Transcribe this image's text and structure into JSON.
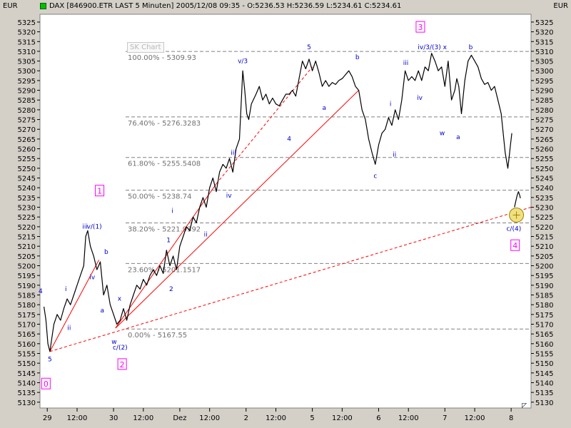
{
  "header": {
    "title": "DAX [846900.ETR LAST 5 Minuten] 2005/12/08 09:35 - O:5236.53 H:5236.59 L:5234.61 C:5234.61",
    "currency_left": "EUR",
    "currency_right": "EUR"
  },
  "watermark": "SK Chart",
  "colors": {
    "price": "#000000",
    "fib": "#808080",
    "trend": "#ff0000",
    "wave_label": "#0000cc",
    "major_label": "#ff00ff",
    "highlight": "#f0e080"
  },
  "chart_data": {
    "type": "line",
    "title": "DAX [846900.ETR LAST 5 Minuten]",
    "ylim": [
      5127,
      5329
    ],
    "y_ticks": [
      5130,
      5135,
      5140,
      5145,
      5150,
      5155,
      5160,
      5165,
      5170,
      5175,
      5180,
      5185,
      5190,
      5195,
      5200,
      5205,
      5210,
      5215,
      5220,
      5225,
      5230,
      5235,
      5240,
      5245,
      5250,
      5255,
      5260,
      5265,
      5270,
      5275,
      5280,
      5285,
      5290,
      5295,
      5300,
      5305,
      5310,
      5315,
      5320,
      5325
    ],
    "x_ticks": [
      {
        "label": "29",
        "x": 0.5
      },
      {
        "label": "12:00",
        "x": 5
      },
      {
        "label": "30",
        "x": 10.5
      },
      {
        "label": "12:00",
        "x": 15
      },
      {
        "label": "Dez",
        "x": 20.5
      },
      {
        "label": "12:00",
        "x": 25
      },
      {
        "label": "2",
        "x": 30.5
      },
      {
        "label": "12:00",
        "x": 35
      },
      {
        "label": "5",
        "x": 40.5
      },
      {
        "label": "12:00",
        "x": 45
      },
      {
        "label": "6",
        "x": 50.5
      },
      {
        "label": "12:00",
        "x": 55
      },
      {
        "label": "7",
        "x": 60.5
      },
      {
        "label": "12:00",
        "x": 65
      },
      {
        "label": "8",
        "x": 70.5
      }
    ],
    "x_range": [
      -0.6,
      73.5
    ],
    "series": [
      {
        "values": [
          [
            0,
            5179
          ],
          [
            0.3,
            5172
          ],
          [
            0.6,
            5160
          ],
          [
            0.9,
            5156
          ],
          [
            1.2,
            5163
          ],
          [
            1.5,
            5170
          ],
          [
            2,
            5175
          ],
          [
            2.5,
            5172
          ],
          [
            3,
            5178
          ],
          [
            3.5,
            5183
          ],
          [
            4,
            5180
          ],
          [
            4.5,
            5185
          ],
          [
            5,
            5190
          ],
          [
            5.5,
            5195
          ],
          [
            6,
            5200
          ],
          [
            6.3,
            5215
          ],
          [
            6.6,
            5218
          ],
          [
            7,
            5210
          ],
          [
            7.5,
            5205
          ],
          [
            8,
            5198
          ],
          [
            8.5,
            5202
          ],
          [
            9,
            5185
          ],
          [
            9.5,
            5190
          ],
          [
            10,
            5180
          ],
          [
            10.5,
            5175
          ],
          [
            11,
            5170
          ],
          [
            11.5,
            5172
          ],
          [
            12,
            5178
          ],
          [
            12.5,
            5172
          ],
          [
            13,
            5180
          ],
          [
            13.5,
            5185
          ],
          [
            14,
            5190
          ],
          [
            14.5,
            5188
          ],
          [
            15,
            5193
          ],
          [
            15.5,
            5190
          ],
          [
            16,
            5195
          ],
          [
            16.5,
            5198
          ],
          [
            17,
            5195
          ],
          [
            17.5,
            5200
          ],
          [
            18,
            5196
          ],
          [
            18.5,
            5208
          ],
          [
            19,
            5200
          ],
          [
            19.5,
            5205
          ],
          [
            20,
            5198
          ],
          [
            20.5,
            5210
          ],
          [
            21,
            5215
          ],
          [
            21.5,
            5220
          ],
          [
            22,
            5218
          ],
          [
            22.5,
            5225
          ],
          [
            23,
            5222
          ],
          [
            23.5,
            5230
          ],
          [
            24,
            5235
          ],
          [
            24.5,
            5230
          ],
          [
            25,
            5240
          ],
          [
            25.5,
            5245
          ],
          [
            26,
            5238
          ],
          [
            26.5,
            5248
          ],
          [
            27,
            5252
          ],
          [
            27.5,
            5250
          ],
          [
            28,
            5255
          ],
          [
            28.5,
            5248
          ],
          [
            29,
            5260
          ],
          [
            29.5,
            5265
          ],
          [
            30,
            5300
          ],
          [
            30.3,
            5290
          ],
          [
            30.6,
            5278
          ],
          [
            30.9,
            5275
          ],
          [
            31.3,
            5283
          ],
          [
            32,
            5288
          ],
          [
            32.5,
            5292
          ],
          [
            33,
            5285
          ],
          [
            33.5,
            5288
          ],
          [
            34,
            5283
          ],
          [
            34.5,
            5286
          ],
          [
            35,
            5283
          ],
          [
            35.5,
            5282
          ],
          [
            36,
            5285
          ],
          [
            36.5,
            5288
          ],
          [
            37,
            5288
          ],
          [
            37.5,
            5290
          ],
          [
            38,
            5287
          ],
          [
            38.5,
            5296
          ],
          [
            39,
            5305
          ],
          [
            39.5,
            5301
          ],
          [
            40,
            5306
          ],
          [
            40.5,
            5300
          ],
          [
            41,
            5305
          ],
          [
            41.5,
            5299
          ],
          [
            42,
            5292
          ],
          [
            42.5,
            5295
          ],
          [
            43,
            5292
          ],
          [
            43.5,
            5294
          ],
          [
            44,
            5293
          ],
          [
            44.5,
            5295
          ],
          [
            45,
            5296
          ],
          [
            45.5,
            5298
          ],
          [
            46,
            5300
          ],
          [
            46.5,
            5297
          ],
          [
            47,
            5292
          ],
          [
            47.5,
            5290
          ],
          [
            48,
            5280
          ],
          [
            48.5,
            5275
          ],
          [
            49,
            5265
          ],
          [
            49.5,
            5258
          ],
          [
            50,
            5252
          ],
          [
            50.5,
            5262
          ],
          [
            51,
            5268
          ],
          [
            51.5,
            5270
          ],
          [
            52,
            5276
          ],
          [
            52.5,
            5272
          ],
          [
            53,
            5280
          ],
          [
            53.5,
            5275
          ],
          [
            54,
            5285
          ],
          [
            54.5,
            5300
          ],
          [
            55,
            5295
          ],
          [
            55.5,
            5297
          ],
          [
            56,
            5295
          ],
          [
            56.5,
            5300
          ],
          [
            57,
            5295
          ],
          [
            57.5,
            5302
          ],
          [
            58,
            5300
          ],
          [
            58.5,
            5309
          ],
          [
            59,
            5305
          ],
          [
            59.5,
            5300
          ],
          [
            60,
            5302
          ],
          [
            60.5,
            5292
          ],
          [
            61,
            5305
          ],
          [
            61.5,
            5285
          ],
          [
            62,
            5290
          ],
          [
            62.3,
            5296
          ],
          [
            62.6,
            5292
          ],
          [
            63,
            5278
          ],
          [
            63.5,
            5295
          ],
          [
            64,
            5305
          ],
          [
            64.5,
            5308
          ],
          [
            65,
            5305
          ],
          [
            65.5,
            5302
          ],
          [
            66,
            5296
          ],
          [
            66.5,
            5293
          ],
          [
            67,
            5294
          ],
          [
            67.5,
            5290
          ],
          [
            68,
            5292
          ],
          [
            68.5,
            5285
          ],
          [
            69,
            5278
          ],
          [
            69.3,
            5268
          ],
          [
            69.6,
            5258
          ],
          [
            70,
            5250
          ],
          [
            70.2,
            5256
          ],
          [
            70.4,
            5262
          ],
          [
            70.6,
            5268
          ]
        ]
      },
      {
        "values": [
          [
            71.0,
            5230
          ],
          [
            71.2,
            5233
          ],
          [
            71.4,
            5236
          ],
          [
            71.6,
            5238
          ],
          [
            71.8,
            5236
          ],
          [
            71.9,
            5234.61
          ]
        ]
      }
    ],
    "fib_levels": [
      {
        "label": "100.00% - 5309.93",
        "value": 5309.93
      },
      {
        "label": "76.40% - 5276.3283",
        "value": 5276.3283
      },
      {
        "label": "61.80% - 5255.5408",
        "value": 5255.5408
      },
      {
        "label": "50.00% - 5238.74",
        "value": 5238.74
      },
      {
        "label": "38.20% - 5221.9392",
        "value": 5221.9392
      },
      {
        "label": "23.60% - 5201.1517",
        "value": 5201.1517
      },
      {
        "label": "0.00% - 5167.55",
        "value": 5167.55
      }
    ],
    "trendlines": [
      {
        "from": [
          0.9,
          5156
        ],
        "to": [
          8.3,
          5203
        ],
        "style": "solid"
      },
      {
        "from": [
          10.8,
          5168
        ],
        "to": [
          26,
          5242
        ],
        "style": "solid"
      },
      {
        "from": [
          10.8,
          5168
        ],
        "to": [
          47.5,
          5290
        ],
        "style": "solid"
      },
      {
        "from": [
          26,
          5242
        ],
        "to": [
          40.5,
          5302
        ],
        "style": "dashed"
      },
      {
        "from": [
          0.9,
          5156
        ],
        "to": [
          73.5,
          5230
        ],
        "style": "dashed"
      }
    ],
    "wave_labels": [
      {
        "text": "4",
        "x": -0.5,
        "y": 5186
      },
      {
        "text": "5",
        "x": 0.9,
        "y": 5151
      },
      {
        "text": "i",
        "x": 3.3,
        "y": 5187
      },
      {
        "text": "ii",
        "x": 3.8,
        "y": 5167
      },
      {
        "text": "iii",
        "x": 6.2,
        "y": 5219
      },
      {
        "text": "v/(1)",
        "x": 7.6,
        "y": 5219
      },
      {
        "text": "iv",
        "x": 7.3,
        "y": 5193
      },
      {
        "text": "b",
        "x": 9.4,
        "y": 5206
      },
      {
        "text": "a",
        "x": 8.8,
        "y": 5176
      },
      {
        "text": "x",
        "x": 11.4,
        "y": 5182
      },
      {
        "text": "w",
        "x": 10.6,
        "y": 5160
      },
      {
        "text": "c/(2)",
        "x": 11.5,
        "y": 5157
      },
      {
        "text": "i",
        "x": 19.4,
        "y": 5227
      },
      {
        "text": "1",
        "x": 18.8,
        "y": 5212
      },
      {
        "text": "2",
        "x": 19.2,
        "y": 5187
      },
      {
        "text": "ii",
        "x": 24.4,
        "y": 5215
      },
      {
        "text": "iii",
        "x": 28.6,
        "y": 5257
      },
      {
        "text": "iv",
        "x": 27.9,
        "y": 5235
      },
      {
        "text": "v/3",
        "x": 30,
        "y": 5304
      },
      {
        "text": "5",
        "x": 40,
        "y": 5311
      },
      {
        "text": "4",
        "x": 37,
        "y": 5264
      },
      {
        "text": "a",
        "x": 42.3,
        "y": 5280
      },
      {
        "text": "b",
        "x": 47.3,
        "y": 5306
      },
      {
        "text": "i",
        "x": 52.3,
        "y": 5282
      },
      {
        "text": "ii",
        "x": 52.9,
        "y": 5256
      },
      {
        "text": "c",
        "x": 50,
        "y": 5245
      },
      {
        "text": "iii",
        "x": 54.6,
        "y": 5303
      },
      {
        "text": "iv",
        "x": 56.7,
        "y": 5285
      },
      {
        "text": "iv/3/(3) x",
        "x": 58.6,
        "y": 5311
      },
      {
        "text": "w",
        "x": 60.1,
        "y": 5267
      },
      {
        "text": "a",
        "x": 62.5,
        "y": 5265
      },
      {
        "text": "b",
        "x": 64.4,
        "y": 5311
      },
      {
        "text": "c/(4)",
        "x": 70.9,
        "y": 5218
      }
    ],
    "major_labels": [
      {
        "text": "0",
        "x": 0.3,
        "y": 5139
      },
      {
        "text": "1",
        "x": 8.4,
        "y": 5238
      },
      {
        "text": "2",
        "x": 11.8,
        "y": 5149
      },
      {
        "text": "3",
        "x": 56.8,
        "y": 5322
      },
      {
        "text": "4",
        "x": 71.1,
        "y": 5210
      }
    ],
    "highlight_point": {
      "x": 71.3,
      "y": 5226
    }
  }
}
